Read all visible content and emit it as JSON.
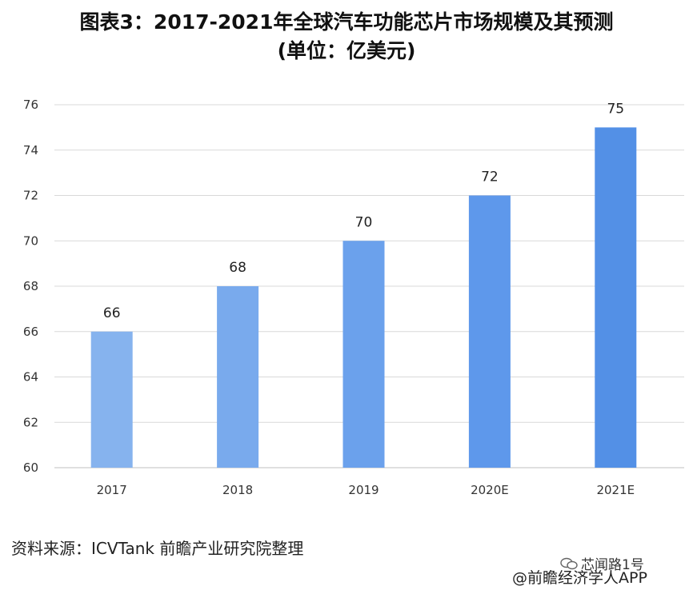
{
  "chart_data": {
    "type": "bar",
    "title": "图表3：2017-2021年全球汽车功能芯片市场规模及其预测",
    "subtitle": "(单位：亿美元)",
    "categories": [
      "2017",
      "2018",
      "2019",
      "2020E",
      "2021E"
    ],
    "values": [
      66,
      68,
      70,
      72,
      75
    ],
    "xlabel": "",
    "ylabel": "",
    "ylim": [
      60,
      76
    ],
    "yticks": [
      60,
      62,
      64,
      66,
      68,
      70,
      72,
      74,
      76
    ],
    "grid": true,
    "bar_colors": [
      "#86b3ee",
      "#79aaed",
      "#6ba1ec",
      "#5e98eb",
      "#5390e6"
    ]
  },
  "footer": {
    "source": "资料来源：ICVTank 前瞻产业研究院整理",
    "badge": "芯闻路1号",
    "brand": "@前瞻经济学人APP"
  }
}
